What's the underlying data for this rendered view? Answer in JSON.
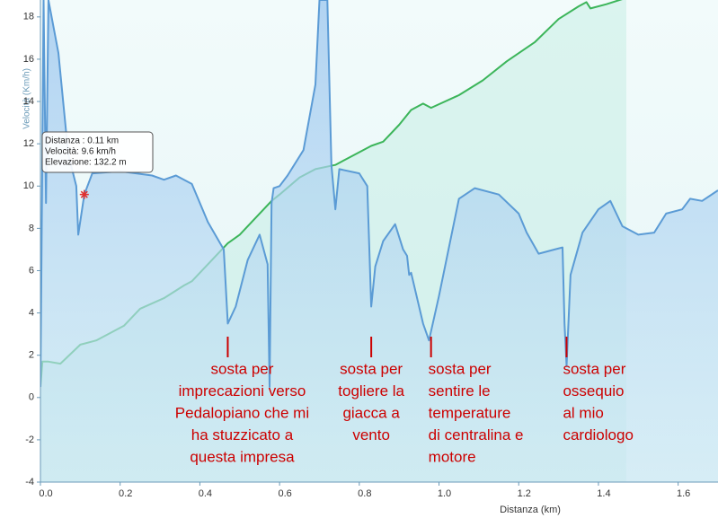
{
  "chart_data": {
    "type": "line",
    "x_label": "Distanza  (km)",
    "y_label": "Velocità (Km/h)",
    "xlim": [
      0,
      1.7
    ],
    "ylim": [
      -4,
      18.8
    ],
    "xticks": [
      {
        "value": 0,
        "label": "0.0"
      },
      0.2,
      0.4,
      0.6,
      0.8,
      {
        "value": 1,
        "label": "1.0"
      },
      1.2,
      1.4,
      1.6
    ],
    "yticks": [
      -4,
      -2,
      0,
      2,
      4,
      6,
      8,
      10,
      12,
      14,
      16,
      18
    ],
    "series": [
      {
        "color": "#5b9bd5",
        "x": [
          0,
          0.008,
          0.014,
          0.02,
          0.045,
          0.07,
          0.09,
          0.095,
          0.11,
          0.13,
          0.2,
          0.28,
          0.31,
          0.34,
          0.38,
          0.42,
          0.46,
          0.47,
          0.49,
          0.52,
          0.55,
          0.57,
          0.575,
          0.58,
          0.585,
          0.6,
          0.62,
          0.66,
          0.69,
          0.7,
          0.72,
          0.73,
          0.74,
          0.75,
          0.8,
          0.82,
          0.83,
          0.84,
          0.86,
          0.89,
          0.91,
          0.92,
          0.925,
          0.93,
          0.96,
          0.975,
          1.0,
          1.05,
          1.09,
          1.15,
          1.2,
          1.22,
          1.25,
          1.29,
          1.31,
          1.315,
          1.32,
          1.33,
          1.36,
          1.4,
          1.43,
          1.46,
          1.5,
          1.54,
          1.57,
          1.61,
          1.63,
          1.66,
          1.7
        ],
        "values": [
          0.5,
          18.8,
          9.2,
          18.8,
          16.3,
          11.5,
          10,
          7.7,
          9.6,
          10.6,
          10.7,
          10.5,
          10.3,
          10.5,
          10.1,
          8.3,
          7,
          3.5,
          4.3,
          6.5,
          7.7,
          6.3,
          0.5,
          9.2,
          9.9,
          10,
          10.5,
          11.7,
          14.8,
          18.8,
          18.8,
          11,
          8.9,
          10.8,
          10.6,
          10,
          4.3,
          6.2,
          7.4,
          8.2,
          7,
          6.7,
          5.8,
          5.9,
          3.5,
          2.7,
          4.8,
          9.4,
          9.9,
          9.6,
          8.7,
          7.8,
          6.8,
          7,
          7.1,
          3.5,
          1.5,
          5.8,
          7.8,
          8.9,
          9.3,
          8.1,
          7.7,
          7.8,
          8.7,
          8.9,
          9.4,
          9.3,
          9.8
        ]
      },
      {
        "color": "#3cb55a",
        "x": [
          0,
          0.005,
          0.02,
          0.05,
          0.1,
          0.14,
          0.21,
          0.25,
          0.31,
          0.36,
          0.38,
          0.42,
          0.47,
          0.5,
          0.58,
          0.6,
          0.65,
          0.69,
          0.74,
          0.77,
          0.83,
          0.86,
          0.9,
          0.93,
          0.96,
          0.98,
          1.05,
          1.11,
          1.17,
          1.24,
          1.3,
          1.35,
          1.37,
          1.38,
          1.42,
          1.47
        ],
        "values": [
          0.5,
          1.7,
          1.7,
          1.6,
          2.5,
          2.7,
          3.4,
          4.2,
          4.7,
          5.3,
          5.5,
          6.3,
          7.3,
          7.7,
          9.3,
          9.6,
          10.4,
          10.8,
          11,
          11.3,
          11.9,
          12.1,
          12.9,
          13.6,
          13.9,
          13.7,
          14.3,
          15,
          15.9,
          16.8,
          17.9,
          18.5,
          18.7,
          18.4,
          18.6,
          18.9
        ]
      }
    ],
    "tooltip": {
      "x": 0.11,
      "y": 9.6,
      "lines": [
        "Distanza : 0.11 km",
        "Velocità: 9.6 km/h",
        "Elevazione: 132.2 m"
      ]
    },
    "annotations": [
      {
        "x": 0.47,
        "lines": [
          "sosta per",
          "imprecazioni verso",
          "Pedalopiano che mi",
          "ha stuzzicato a",
          "questa impresa"
        ]
      },
      {
        "x": 0.83,
        "lines": [
          "sosta per",
          "togliere la",
          "giacca a",
          "vento"
        ]
      },
      {
        "x": 0.98,
        "lines": [
          "sosta per",
          "sentire le",
          "temperature",
          "di centralina e",
          "motore"
        ]
      },
      {
        "x": 1.32,
        "lines": [
          "sosta per",
          "ossequio",
          "al mio",
          "cardiologo"
        ]
      }
    ]
  }
}
